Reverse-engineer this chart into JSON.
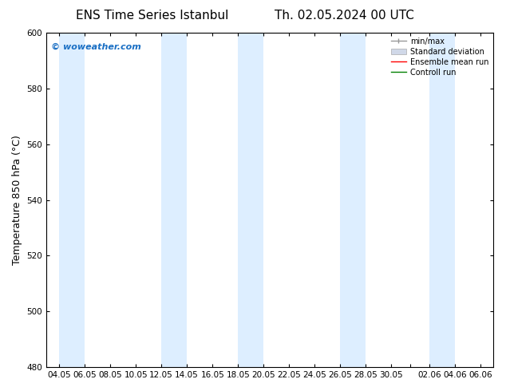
{
  "title_left": "ENS Time Series Istanbul",
  "title_right": "Th. 02.05.2024 00 UTC",
  "ylabel": "Temperature 850 hPa (°C)",
  "ylim": [
    480,
    600
  ],
  "yticks": [
    480,
    500,
    520,
    540,
    560,
    580,
    600
  ],
  "x_labels": [
    "04.05",
    "06.05",
    "08.05",
    "10.05",
    "12.05",
    "14.05",
    "16.05",
    "18.05",
    "20.05",
    "22.05",
    "24.05",
    "26.05",
    "28.05",
    "30.05",
    "",
    "02.06",
    "04.06",
    "06.06"
  ],
  "watermark": "© woweather.com",
  "watermark_color": "#1a6fc4",
  "background_color": "#ffffff",
  "band_color": "#ddeeff",
  "legend_entries": [
    "min/max",
    "Standard deviation",
    "Ensemble mean run",
    "Controll run"
  ],
  "legend_colors": [
    "#aaaaaa",
    "#cccccc",
    "#ff0000",
    "#008000"
  ],
  "title_fontsize": 11,
  "tick_fontsize": 7.5,
  "ylabel_fontsize": 9
}
